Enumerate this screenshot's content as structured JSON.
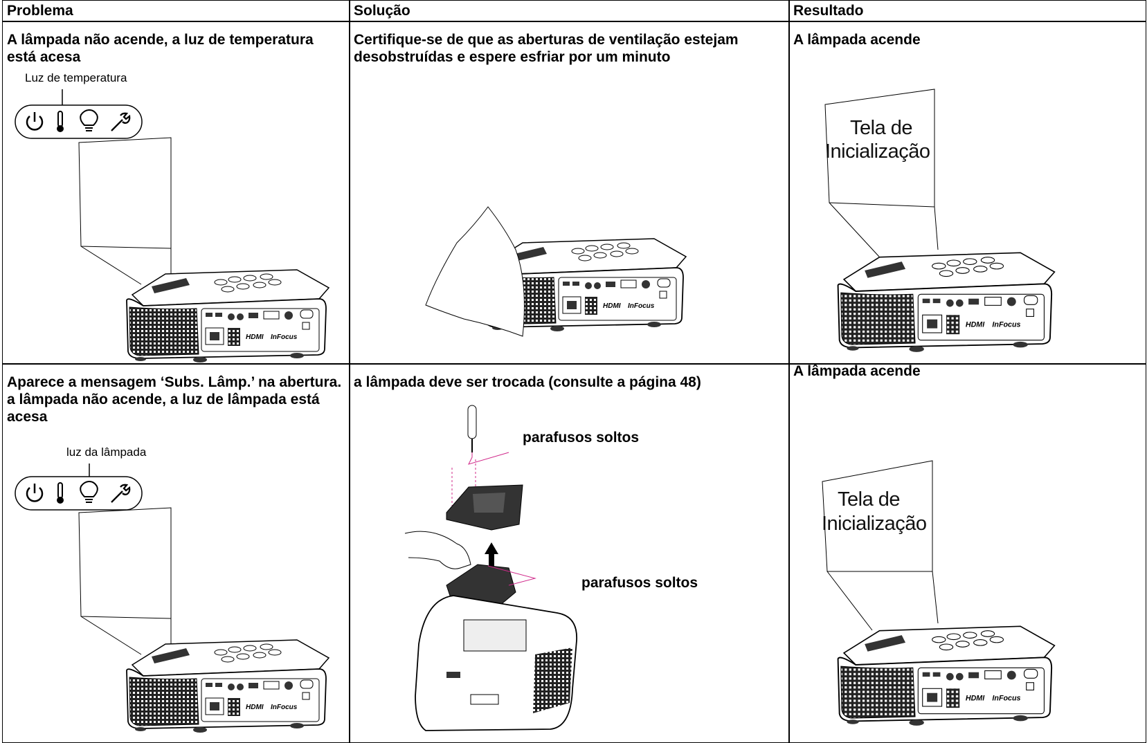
{
  "table": {
    "header": [
      "Problema",
      "Solução",
      "Resultado"
    ],
    "rows": [
      {
        "problem": "A lâmpada não acende, a luz de temperatura está acesa",
        "indicator_label": "Luz de temperatura",
        "solution": "Certifique-se de que as aberturas de ventilação estejam desobstruídas e espere esfriar por um minuto",
        "result": "A lâmpada acende",
        "screen_lines": [
          "Tela de",
          "Inicialização"
        ]
      },
      {
        "problem": "Aparece a mensagem ‘Subs. Lâmp.’ na abertura. a lâmpada não acende, a luz de lâmpada está acesa",
        "indicator_label": "luz da lâmpada",
        "solution": "a lâmpada deve ser trocada (consulte a página 48)",
        "callouts": [
          "parafusos soltos",
          "parafusos soltos"
        ],
        "result": "A lâmpada acende",
        "screen_lines": [
          "Tela de",
          "Inicialização"
        ]
      }
    ]
  }
}
